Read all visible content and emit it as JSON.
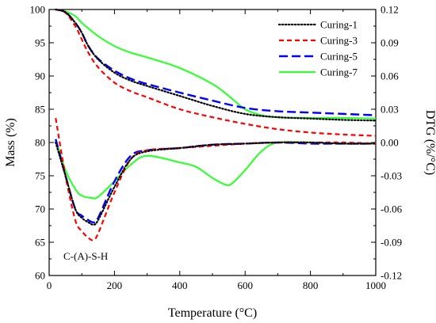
{
  "chart_data": {
    "type": "line",
    "xlabel": "Temperature (°C)",
    "ylabel_left": "Mass (%)",
    "ylabel_right": "DTG (%/°C)",
    "xlim": [
      0,
      1000
    ],
    "ylim_left": [
      60,
      100
    ],
    "ylim_right": [
      -0.12,
      0.12
    ],
    "x_ticks": [
      "0",
      "200",
      "400",
      "600",
      "800",
      "1000"
    ],
    "y_left_ticks": [
      "60",
      "65",
      "70",
      "75",
      "80",
      "85",
      "90",
      "95",
      "100"
    ],
    "y_right_ticks": [
      "-0.12",
      "-0.09",
      "-0.06",
      "-0.03",
      "0.00",
      "0.03",
      "0.06",
      "0.09",
      "0.12"
    ],
    "grid": false,
    "legend_position": "top-right",
    "annotation": "C-(A)-S-H",
    "series": [
      {
        "name": "Curing-1",
        "color": "#000000",
        "dash": "dotted",
        "tg": {
          "x": [
            20,
            50,
            80,
            100,
            120,
            150,
            200,
            250,
            300,
            400,
            500,
            600,
            700,
            800,
            900,
            1000
          ],
          "y": [
            100,
            99.6,
            98,
            96.5,
            94.5,
            92.5,
            90.5,
            89.3,
            88.5,
            87,
            85.5,
            84.3,
            83.8,
            83.6,
            83.4,
            83.3
          ]
        },
        "dtg": {
          "x": [
            20,
            50,
            80,
            100,
            120,
            135,
            150,
            200,
            250,
            300,
            400,
            500,
            600,
            700,
            800,
            900,
            1000
          ],
          "y": [
            0.0,
            -0.03,
            -0.06,
            -0.068,
            -0.072,
            -0.074,
            -0.07,
            -0.04,
            -0.015,
            -0.008,
            -0.005,
            -0.002,
            -0.001,
            0.0,
            0.0,
            -0.001,
            -0.001
          ]
        }
      },
      {
        "name": "Curing-3",
        "color": "#ff0000",
        "dash": "dashed",
        "tg": {
          "x": [
            20,
            50,
            80,
            100,
            120,
            150,
            200,
            250,
            300,
            400,
            500,
            600,
            700,
            800,
            900,
            1000
          ],
          "y": [
            100,
            99.5,
            97.5,
            95.5,
            93.5,
            91.3,
            89,
            87.7,
            86.8,
            85,
            83.8,
            82.8,
            82,
            81.5,
            81.2,
            81
          ]
        },
        "dtg": {
          "x": [
            20,
            50,
            80,
            100,
            120,
            135,
            150,
            200,
            250,
            300,
            400,
            500,
            600,
            700,
            800,
            900,
            1000
          ],
          "y": [
            0.022,
            -0.03,
            -0.07,
            -0.08,
            -0.086,
            -0.088,
            -0.082,
            -0.045,
            -0.015,
            -0.007,
            -0.005,
            -0.003,
            -0.001,
            0.0,
            0.0,
            0.0,
            -0.001
          ]
        }
      },
      {
        "name": "Curing-5",
        "color": "#0000ff",
        "dash": "long-dash",
        "tg": {
          "x": [
            20,
            50,
            80,
            100,
            120,
            150,
            200,
            250,
            300,
            400,
            500,
            600,
            700,
            800,
            900,
            1000
          ],
          "y": [
            100,
            99.6,
            98,
            96.5,
            94.5,
            92.6,
            90.8,
            89.6,
            88.8,
            87.5,
            86.3,
            85.2,
            84.7,
            84.5,
            84.3,
            84.1
          ]
        },
        "dtg": {
          "x": [
            20,
            50,
            80,
            100,
            120,
            135,
            150,
            200,
            250,
            300,
            400,
            500,
            600,
            700,
            800,
            900,
            1000
          ],
          "y": [
            0.003,
            -0.03,
            -0.06,
            -0.066,
            -0.07,
            -0.072,
            -0.068,
            -0.035,
            -0.012,
            -0.007,
            -0.005,
            -0.002,
            -0.001,
            0.0,
            -0.001,
            -0.001,
            -0.001
          ]
        }
      },
      {
        "name": "Curing-7",
        "color": "#33ff33",
        "dash": "solid",
        "tg": {
          "x": [
            20,
            50,
            80,
            100,
            150,
            200,
            250,
            300,
            400,
            500,
            550,
            600,
            650,
            700,
            800,
            900,
            1000
          ],
          "y": [
            100,
            99.7,
            99,
            98,
            96,
            94.5,
            93.5,
            92.8,
            91.2,
            88.8,
            87,
            85,
            84.1,
            83.8,
            83.7,
            83.7,
            83.6
          ]
        },
        "dtg": {
          "x": [
            20,
            50,
            80,
            100,
            130,
            150,
            200,
            250,
            300,
            400,
            450,
            500,
            540,
            560,
            600,
            650,
            700,
            800,
            900,
            1000
          ],
          "y": [
            0.003,
            -0.025,
            -0.042,
            -0.048,
            -0.05,
            -0.049,
            -0.035,
            -0.02,
            -0.012,
            -0.018,
            -0.022,
            -0.032,
            -0.038,
            -0.037,
            -0.025,
            -0.008,
            0.0,
            0.0,
            -0.001,
            -0.001
          ]
        }
      }
    ]
  }
}
